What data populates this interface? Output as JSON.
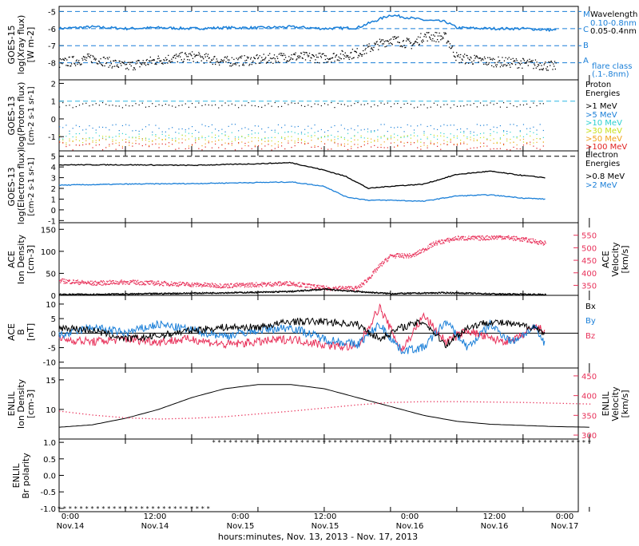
{
  "colors": {
    "black": "#000000",
    "blue": "#1a7fd8",
    "cyan": "#2fb7e6",
    "red": "#e8315a",
    "p1": "#000000",
    "p5": "#1a7fd8",
    "p10": "#2ad0d0",
    "p30": "#c8e01c",
    "p50": "#f0a21a",
    "p100": "#e02020"
  },
  "footer": {
    "x_title": "hours:minutes, Nov. 13, 2013 - Nov. 17, 2013",
    "ticks_top": [
      "0:00",
      "12:00",
      "0:00",
      "12:00",
      "0:00",
      "12:00",
      "0:00"
    ],
    "ticks_bottom": [
      "Nov.14",
      "Nov.14",
      "Nov.15",
      "Nov.15",
      "Nov.16",
      "Nov.16",
      "Nov.17"
    ]
  },
  "chart_data": [
    {
      "type": "line",
      "panel": "goes15-xray",
      "ylabel_lines": [
        "GOES-15",
        "log(Xray flux)",
        "[W m-2]"
      ],
      "ylim": [
        -9,
        -4.7
      ],
      "yticks": [
        -5,
        -6,
        -7,
        -8
      ],
      "ytick_labels": [
        "-5",
        "-6",
        "-7",
        "-8"
      ],
      "flare_class_lines": {
        "M": -5,
        "C": -6,
        "B": -7,
        "A": -8
      },
      "flare_class_labels": [
        "M",
        "C",
        "B",
        "A"
      ],
      "legend_title": "Wavelength",
      "legend_items": [
        "0.10-0.8nm",
        "0.05-0.4nm"
      ],
      "legend_note_lines": [
        "flare class",
        "(.1-.8nm)"
      ],
      "series": [
        {
          "name": "0.10-0.8nm",
          "x_hours": [
            0,
            6,
            12,
            18,
            24,
            30,
            36,
            42,
            48,
            54,
            60,
            66,
            70,
            72,
            78,
            84,
            90
          ],
          "values": [
            -6.0,
            -5.9,
            -6.0,
            -5.95,
            -6.0,
            -5.95,
            -5.95,
            -5.9,
            -6.0,
            -5.95,
            -5.2,
            -5.5,
            -5.6,
            -5.95,
            -6.0,
            -6.0,
            -6.1
          ]
        },
        {
          "name": "0.05-0.4nm",
          "x_hours": [
            0,
            6,
            12,
            18,
            24,
            30,
            36,
            42,
            48,
            54,
            60,
            64,
            66,
            70,
            72,
            78,
            84,
            90
          ],
          "values": [
            -8.0,
            -7.7,
            -8.2,
            -7.8,
            -7.6,
            -7.9,
            -7.8,
            -7.6,
            -7.7,
            -7.4,
            -6.6,
            -6.9,
            -6.4,
            -6.5,
            -7.7,
            -7.9,
            -8.0,
            -8.2
          ]
        }
      ]
    },
    {
      "type": "scatter",
      "panel": "goes13-proton",
      "ylabel_lines": [
        "GOES-13",
        "log(Proton flux)",
        "[cm-2 s-1 sr-1]"
      ],
      "ylim": [
        -1.8,
        2.2
      ],
      "yticks": [
        2,
        1,
        0,
        -1
      ],
      "ytick_labels": [
        "2",
        "1",
        "0",
        "-1"
      ],
      "threshold": 1,
      "legend_title_lines": [
        "Proton",
        "Energies"
      ],
      "series": [
        {
          "name": ">1 MeV",
          "level": 0.8
        },
        {
          "name": ">5 MeV",
          "level": -0.5
        },
        {
          "name": ">10 MeV",
          "level": -0.9
        },
        {
          "name": ">30 MeV",
          "level": -1.1
        },
        {
          "name": ">50 MeV",
          "level": -1.3
        },
        {
          "name": ">100 MeV",
          "level": -1.5
        }
      ]
    },
    {
      "type": "line",
      "panel": "goes13-electron",
      "ylabel_lines": [
        "GOES-13",
        "log(Electron flux)",
        "[cm-2 s-1 sr-1]"
      ],
      "ylim": [
        -1.2,
        5.5
      ],
      "yticks": [
        5,
        4,
        3,
        2,
        1,
        0,
        -1
      ],
      "ytick_labels": [
        "5",
        "4",
        "3",
        "2",
        "1",
        "0",
        "-1"
      ],
      "threshold": 5,
      "legend_title_lines": [
        "Electron",
        "Energies"
      ],
      "series": [
        {
          "name": ">0.8 MeV",
          "x_hours": [
            0,
            12,
            24,
            36,
            42,
            48,
            52,
            56,
            60,
            66,
            72,
            78,
            84,
            88
          ],
          "values": [
            4.2,
            4.2,
            4.15,
            4.3,
            4.4,
            3.7,
            3.1,
            2.0,
            2.2,
            2.4,
            3.3,
            3.6,
            3.2,
            3.0
          ]
        },
        {
          "name": ">2 MeV",
          "x_hours": [
            0,
            12,
            24,
            36,
            42,
            48,
            52,
            56,
            60,
            66,
            72,
            78,
            84,
            88
          ],
          "values": [
            2.3,
            2.4,
            2.45,
            2.55,
            2.6,
            2.2,
            1.2,
            0.9,
            0.9,
            0.8,
            1.3,
            1.4,
            1.1,
            1.0
          ]
        }
      ]
    },
    {
      "type": "scatter",
      "panel": "ace-density-velocity",
      "ylabel_lines": [
        "ACE",
        "Ion Density",
        "[cm-3]"
      ],
      "ylabel_right_lines": [
        "ACE",
        "Velocity",
        "[km/s]"
      ],
      "ylim": [
        0,
        165
      ],
      "yticks": [
        150,
        100,
        50,
        0
      ],
      "ytick_labels": [
        "150",
        "100",
        "50",
        "0"
      ],
      "ylim_right": [
        310,
        600
      ],
      "yticks_right": [
        550,
        500,
        450,
        400,
        350
      ],
      "ytick_labels_right": [
        "550",
        "500",
        "450",
        "400",
        "350"
      ],
      "series": [
        {
          "name": "Ion Density",
          "axis": "left",
          "x_hours": [
            0,
            12,
            24,
            36,
            42,
            48,
            56,
            60,
            70,
            80,
            88
          ],
          "values": [
            3,
            4,
            6,
            8,
            10,
            15,
            8,
            5,
            7,
            4,
            3
          ]
        },
        {
          "name": "Velocity",
          "axis": "right",
          "x_hours": [
            0,
            6,
            12,
            18,
            24,
            30,
            36,
            42,
            48,
            54,
            56,
            58,
            60,
            64,
            68,
            72,
            76,
            80,
            84,
            88
          ],
          "values": [
            370,
            360,
            365,
            360,
            355,
            350,
            355,
            360,
            340,
            340,
            380,
            430,
            470,
            470,
            520,
            540,
            540,
            545,
            535,
            520
          ]
        }
      ]
    },
    {
      "type": "line",
      "panel": "ace-magnetic",
      "ylabel_lines": [
        "ACE",
        "B",
        "[nT]"
      ],
      "ylim": [
        -12,
        13
      ],
      "yticks": [
        10,
        5,
        0,
        -5,
        -10
      ],
      "ytick_labels": [
        "10",
        "5",
        "0",
        "-5",
        "-10"
      ],
      "legend_items": [
        "Bx",
        "By",
        "Bz"
      ],
      "series": [
        {
          "name": "Bx",
          "x_hours": [
            0,
            6,
            12,
            18,
            24,
            30,
            36,
            42,
            48,
            54,
            58,
            62,
            66,
            70,
            74,
            78,
            82,
            86,
            88
          ],
          "values": [
            2,
            1,
            -2,
            -1,
            1,
            2,
            2,
            4,
            4,
            3,
            -2,
            2,
            4,
            -4,
            2,
            4,
            3,
            2,
            0
          ]
        },
        {
          "name": "By",
          "x_hours": [
            0,
            6,
            12,
            18,
            24,
            30,
            36,
            42,
            48,
            54,
            58,
            62,
            66,
            70,
            74,
            78,
            82,
            86,
            88
          ],
          "values": [
            -1,
            2,
            0,
            3,
            1,
            -1,
            1,
            2,
            -2,
            -4,
            3,
            -6,
            -5,
            4,
            -5,
            3,
            -3,
            2,
            -4
          ]
        },
        {
          "name": "Bz",
          "x_hours": [
            0,
            6,
            12,
            18,
            24,
            30,
            36,
            42,
            48,
            54,
            58,
            62,
            66,
            70,
            74,
            78,
            82,
            86,
            88
          ],
          "values": [
            -2,
            -3,
            -2,
            -3,
            -2,
            -4,
            -3,
            -2,
            -4,
            -5,
            9,
            -6,
            6,
            -3,
            1,
            -2,
            -3,
            2,
            1
          ]
        }
      ]
    },
    {
      "type": "line",
      "panel": "enlil-density-velocity",
      "ylabel_lines": [
        "ENLIL",
        "Ion Density",
        "[cm-3]"
      ],
      "ylabel_right_lines": [
        "ENLIL",
        "Velocity",
        "[km/s]"
      ],
      "ylim": [
        5,
        17
      ],
      "yticks": [
        15,
        10
      ],
      "ytick_labels": [
        "15",
        "10"
      ],
      "ylim_right": [
        290,
        470
      ],
      "yticks_right": [
        450,
        400,
        350,
        300
      ],
      "ytick_labels_right": [
        "450",
        "400",
        "350",
        "300"
      ],
      "series": [
        {
          "name": "Ion Density",
          "axis": "left",
          "x_hours": [
            0,
            6,
            12,
            18,
            24,
            30,
            36,
            42,
            48,
            54,
            60,
            66,
            72,
            78,
            84,
            90,
            96
          ],
          "values": [
            7,
            7.4,
            8.5,
            10,
            12,
            13.5,
            14.2,
            14.2,
            13.5,
            12,
            10.5,
            9,
            8,
            7.5,
            7.3,
            7.1,
            7
          ]
        },
        {
          "name": "Velocity",
          "axis": "right",
          "x_hours": [
            0,
            6,
            12,
            18,
            24,
            30,
            36,
            42,
            48,
            54,
            60,
            66,
            72,
            78,
            84,
            90,
            96
          ],
          "values": [
            362,
            352,
            345,
            342,
            344,
            348,
            355,
            362,
            370,
            378,
            384,
            386,
            386,
            385,
            384,
            382,
            380
          ]
        }
      ]
    },
    {
      "type": "scatter",
      "panel": "enlil-polarity",
      "ylabel_lines": [
        "ENLIL",
        "Br polarity"
      ],
      "ylim": [
        -1.1,
        1.1
      ],
      "yticks": [
        1.0,
        0.5,
        0.0,
        -0.5,
        -1.0
      ],
      "ytick_labels": [
        "1.0",
        "0.5",
        "0.0",
        "-0.5",
        "-1.0"
      ],
      "series": [
        {
          "name": "Br polarity",
          "x_hours": [
            0,
            28,
            28,
            96
          ],
          "values": [
            -1,
            -1,
            1,
            1
          ]
        }
      ]
    }
  ]
}
